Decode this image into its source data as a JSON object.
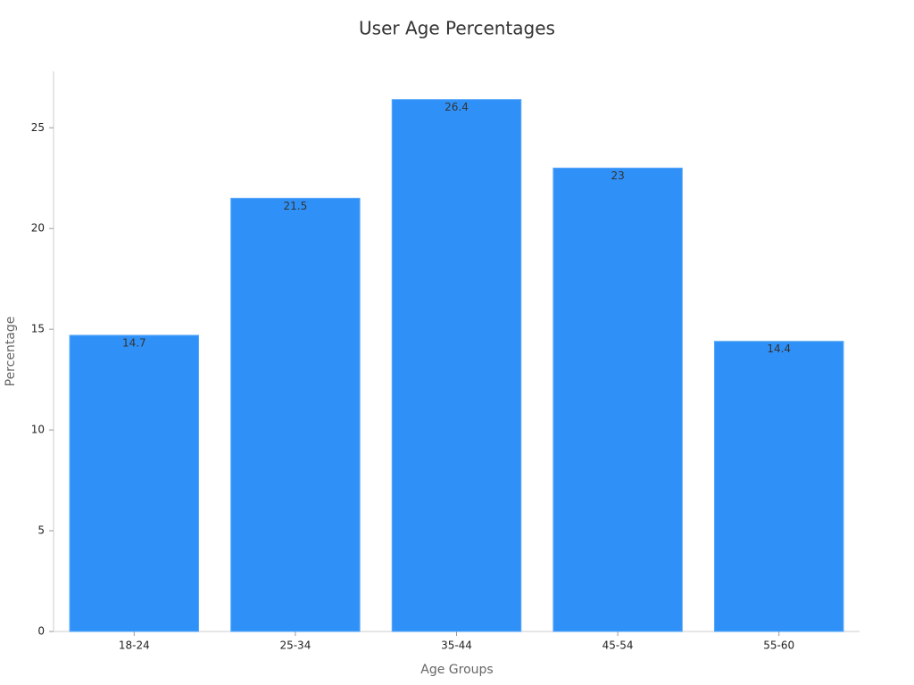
{
  "chart_data": {
    "type": "bar",
    "title": "User Age Percentages",
    "x_label": "Age Groups",
    "y_label": "Percentage",
    "categories": [
      "18-24",
      "25-34",
      "35-44",
      "45-54",
      "55-60"
    ],
    "values": [
      14.7,
      21.5,
      26.4,
      23,
      14.4
    ],
    "color": "#2f91f8",
    "ylim": [
      0,
      27.8
    ],
    "yticks": [
      0,
      5,
      10,
      15,
      20,
      25
    ],
    "grid": false
  }
}
